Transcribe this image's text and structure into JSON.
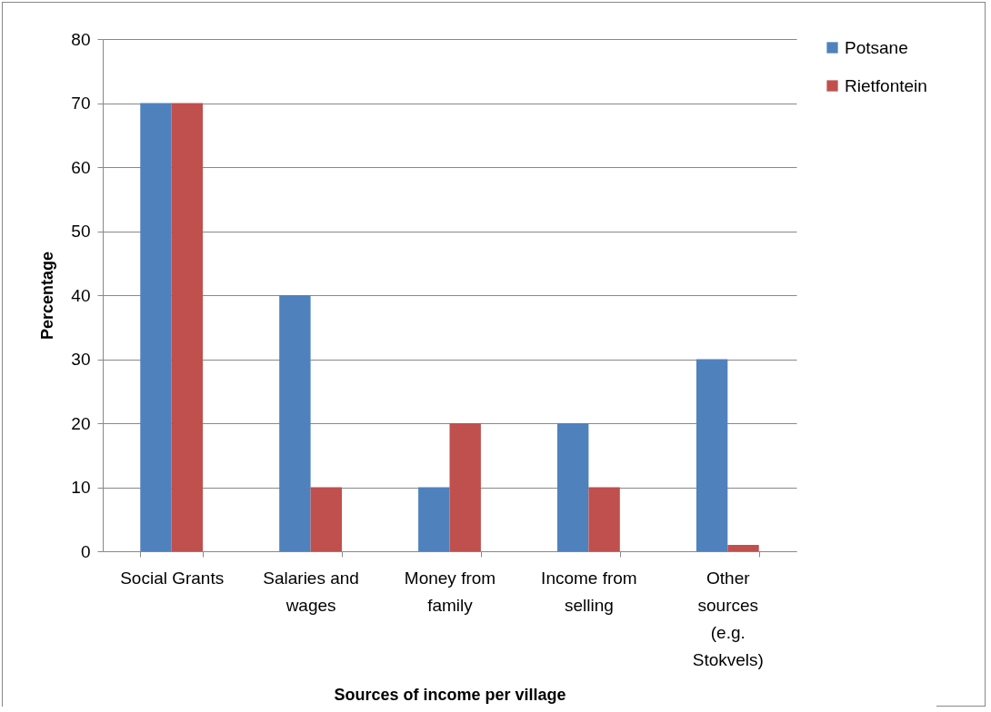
{
  "chart_data": {
    "type": "bar",
    "xlabel": "Sources of income per village",
    "ylabel": "Percentage",
    "categories": [
      "Social Grants",
      "Salaries and wages",
      "Money from family",
      "Income from selling",
      "Other sources (e.g. Stokvels)"
    ],
    "series": [
      {
        "name": "Potsane",
        "color": "#4f81bd",
        "values": [
          70,
          40,
          10,
          20,
          30
        ]
      },
      {
        "name": "Rietfontein",
        "color": "#c0504d",
        "values": [
          70,
          10,
          20,
          10,
          1
        ]
      }
    ],
    "ylim": [
      0,
      80
    ],
    "yticks": [
      0,
      10,
      20,
      30,
      40,
      50,
      60,
      70,
      80
    ],
    "grid": "y",
    "legend": "right"
  }
}
